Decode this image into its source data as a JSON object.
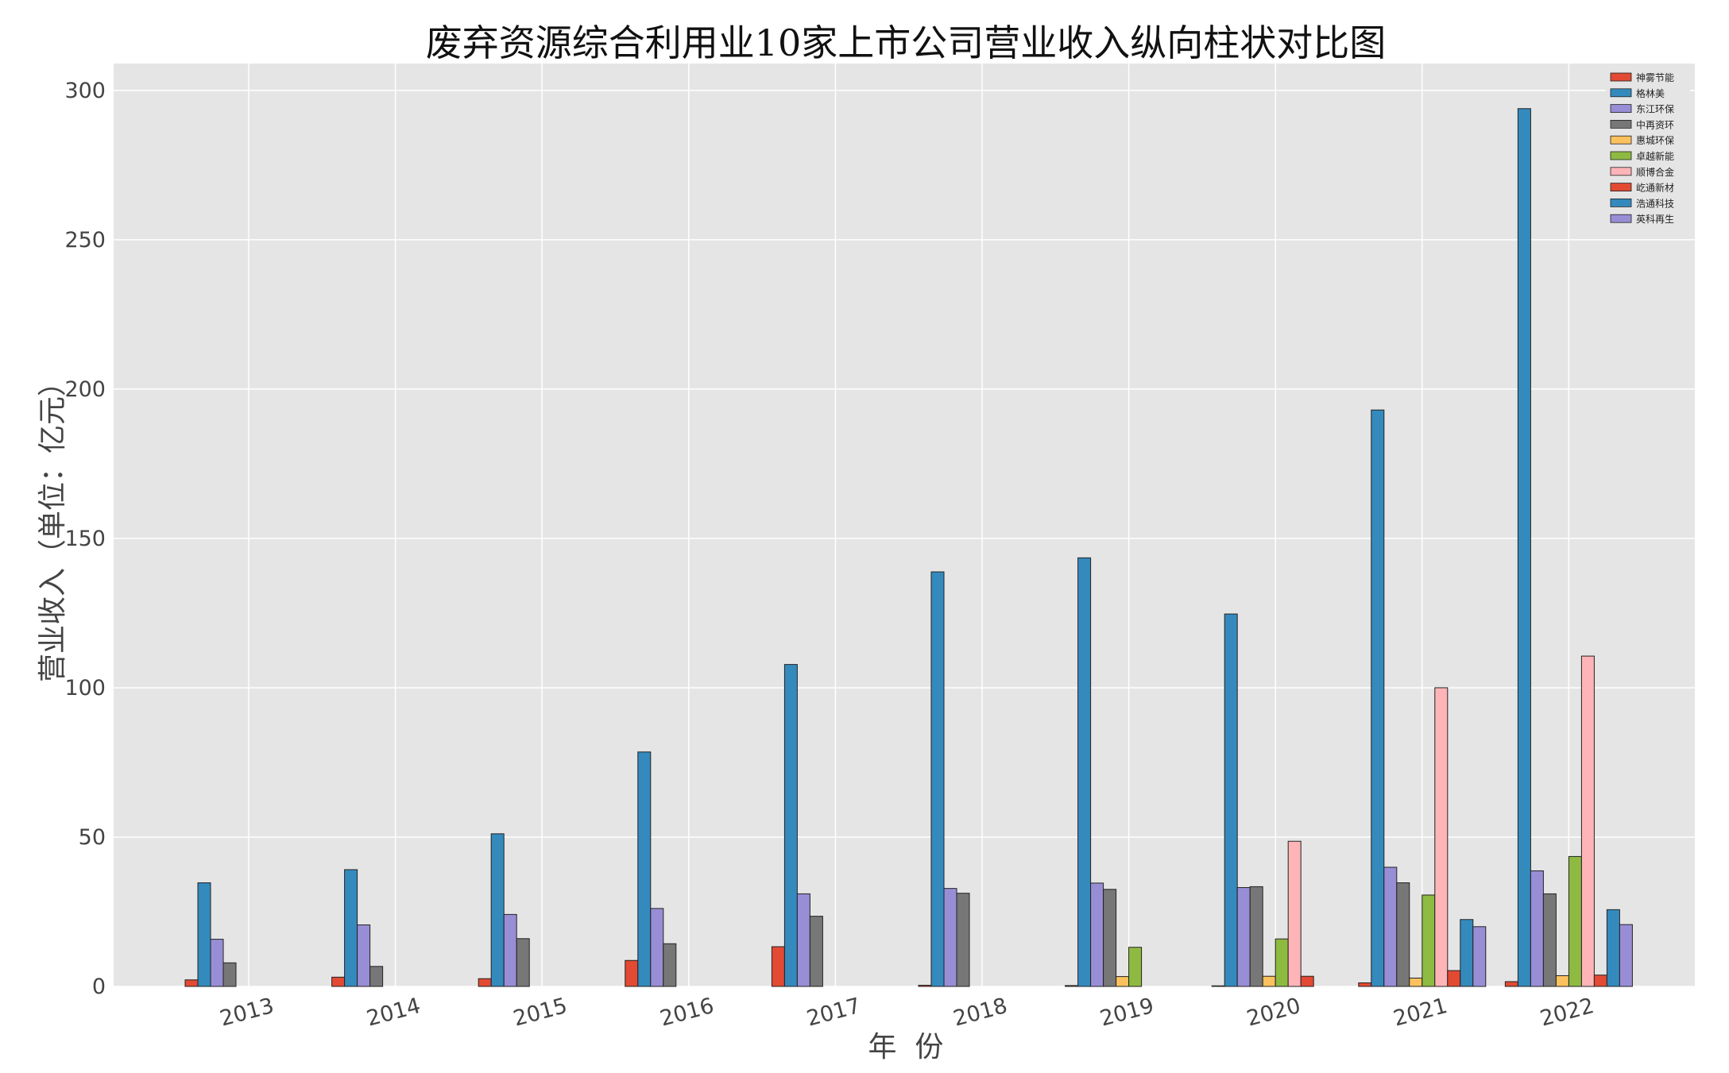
{
  "chart_data": {
    "type": "bar",
    "title": "废弃资源综合利用业10家上市公司营业收入纵向柱状对比图",
    "xlabel": "年  份",
    "ylabel": "营业收入（单位：亿元）",
    "ylim": [
      0,
      309
    ],
    "yticks": [
      0,
      50,
      100,
      150,
      200,
      250,
      300
    ],
    "grid": true,
    "legend_position": "top-right",
    "categories": [
      "2013",
      "2014",
      "2015",
      "2016",
      "2017",
      "2018",
      "2019",
      "2020",
      "2021",
      "2022"
    ],
    "series": [
      {
        "name": "神雾节能",
        "color": "#E24A33",
        "values": [
          2.2,
          3.1,
          2.6,
          8.7,
          13.3,
          0.4,
          0.3,
          0.2,
          1.2,
          1.6
        ]
      },
      {
        "name": "格林美",
        "color": "#348ABD",
        "values": [
          34.7,
          39.1,
          51.1,
          78.5,
          107.8,
          138.8,
          143.5,
          124.7,
          193.0,
          293.9
        ]
      },
      {
        "name": "东江环保",
        "color": "#988ED5",
        "values": [
          15.8,
          20.6,
          24.1,
          26.1,
          31.0,
          32.8,
          34.6,
          33.1,
          39.9,
          38.7
        ]
      },
      {
        "name": "中再资环",
        "color": "#777777",
        "values": [
          7.9,
          6.7,
          16.0,
          14.3,
          23.5,
          31.2,
          32.5,
          33.4,
          34.7,
          31.0
        ]
      },
      {
        "name": "惠城环保",
        "color": "#FBC15E",
        "values": [
          null,
          null,
          null,
          null,
          null,
          null,
          3.3,
          3.4,
          2.8,
          3.6
        ]
      },
      {
        "name": "卓越新能",
        "color": "#8EBA42",
        "values": [
          null,
          null,
          null,
          null,
          null,
          null,
          13.1,
          15.9,
          30.6,
          43.5
        ]
      },
      {
        "name": "顺博合金",
        "color": "#FFB5B8",
        "values": [
          null,
          null,
          null,
          null,
          null,
          null,
          null,
          48.6,
          100.0,
          110.6
        ]
      },
      {
        "name": "屹通新材",
        "color": "#E24A33",
        "values": [
          null,
          null,
          null,
          null,
          null,
          null,
          null,
          3.4,
          5.3,
          3.8
        ]
      },
      {
        "name": "浩通科技",
        "color": "#348ABD",
        "values": [
          null,
          null,
          null,
          null,
          null,
          null,
          null,
          null,
          22.4,
          25.7
        ]
      },
      {
        "name": "英科再生",
        "color": "#988ED5",
        "values": [
          null,
          null,
          null,
          null,
          null,
          null,
          null,
          null,
          20.0,
          20.7
        ]
      }
    ]
  }
}
